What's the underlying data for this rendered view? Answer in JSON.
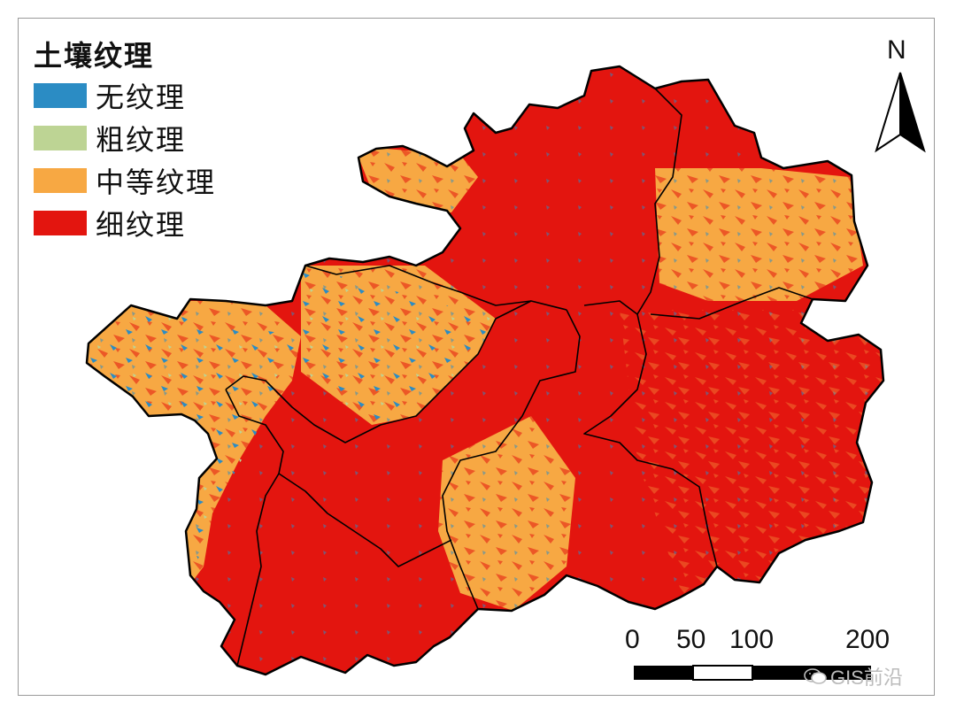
{
  "legend": {
    "title": "土壤纹理",
    "items": [
      {
        "label": "无纹理",
        "color": "#2b8cc4"
      },
      {
        "label": "粗纹理",
        "color": "#bdd494"
      },
      {
        "label": "中等纹理",
        "color": "#f7a843"
      },
      {
        "label": "细纹理",
        "color": "#e3150f"
      }
    ]
  },
  "north_arrow": {
    "label": "N"
  },
  "scale_bar": {
    "labels": [
      "0",
      "50",
      "100",
      "200"
    ]
  },
  "watermark": {
    "text": "GIS前沿",
    "icon": "wechat-icon"
  },
  "colors": {
    "border": "#000000",
    "frame": "#9a9a9a"
  }
}
